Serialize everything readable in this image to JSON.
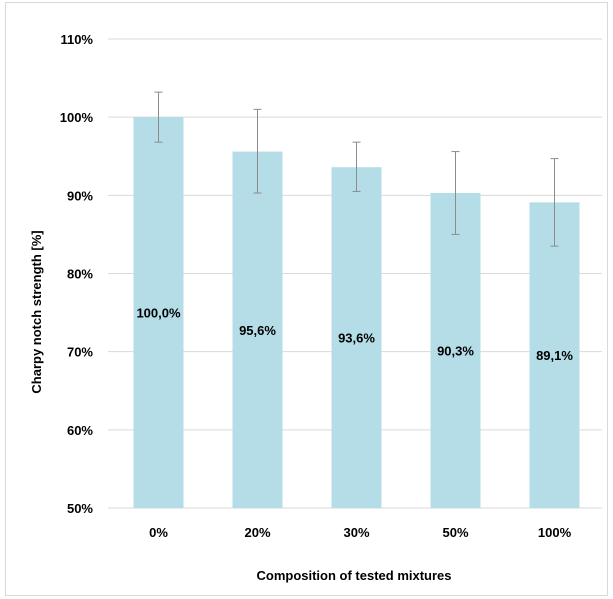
{
  "chart_data": {
    "type": "bar",
    "categories": [
      "0%",
      "20%",
      "30%",
      "50%",
      "100%"
    ],
    "values": [
      100.0,
      95.6,
      93.6,
      90.3,
      89.1
    ],
    "error_low": [
      96.8,
      90.3,
      90.5,
      85.0,
      83.5
    ],
    "error_high": [
      103.2,
      101.0,
      96.8,
      95.6,
      94.7
    ],
    "data_labels": [
      "100,0%",
      "95,6%",
      "93,6%",
      "90,3%",
      "89,1%"
    ],
    "ylim": [
      50,
      110
    ],
    "yticks": [
      50,
      60,
      70,
      80,
      90,
      100,
      110
    ],
    "ytick_labels": [
      "50%",
      "60%",
      "70%",
      "80%",
      "90%",
      "100%",
      "110%"
    ],
    "xlabel": "Composition of tested mixtures",
    "ylabel": "Charpy notch strength [%]",
    "title": "",
    "grid": true,
    "legend": "none",
    "bar_color": "#b4dde8",
    "error_color": "#8c8c8c",
    "grid_color": "#d9d9d9"
  }
}
